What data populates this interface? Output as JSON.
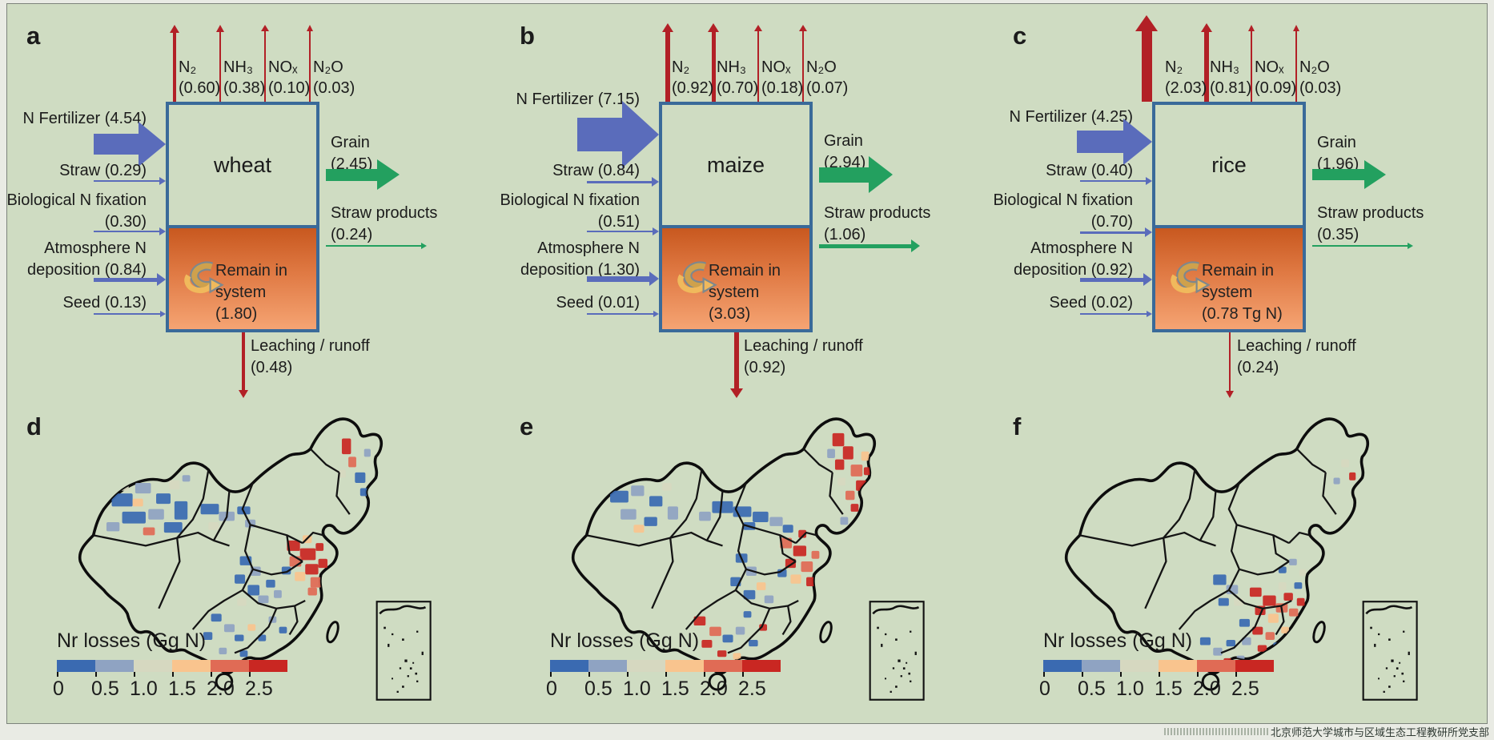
{
  "figure": {
    "watermark": "北京师范大学城市与区域生态工程教研所党支部"
  },
  "colors": {
    "background": "#cfdcc2",
    "outer_background": "#e9ebe4",
    "box_border": "#3a6a99",
    "red_arrow": "#b22026",
    "blue_arrow": "#5a6cbb",
    "green_arrow": "#23a05f",
    "orange_top": "#c8581f",
    "orange_bottom": "#f5a473",
    "legend": [
      "#3a6ab1",
      "#8fa3c2",
      "#d6d8c0",
      "#f9c48e",
      "#e06b55",
      "#c92722"
    ]
  },
  "flow_panels": [
    {
      "label": "a",
      "crop": "wheat",
      "gases": [
        {
          "name": "N₂",
          "value": "(0.60)"
        },
        {
          "name": "NH₃",
          "value": "(0.38)"
        },
        {
          "name": "NOₓ",
          "value": "(0.10)"
        },
        {
          "name": "N₂O",
          "value": "(0.03)"
        }
      ],
      "inputs": {
        "fertilizer": "N Fertilizer (4.54)",
        "straw": "Straw (0.29)",
        "bnf_line1": "Biological N fixation",
        "bnf_line2": "(0.30)",
        "dep_line1": "Atmosphere N",
        "dep_line2": "deposition (0.84)",
        "seed": "Seed (0.13)"
      },
      "outputs": {
        "grain_label": "Grain",
        "grain_value": "(2.45)",
        "straw_products_label": "Straw products",
        "straw_products_value": "(0.24)",
        "leaching_label": "Leaching / runoff",
        "leaching_value": "(0.48)"
      },
      "remain_label": "Remain in system",
      "remain_value": "(1.80)"
    },
    {
      "label": "b",
      "crop": "maize",
      "gases": [
        {
          "name": "N₂",
          "value": "(0.92)"
        },
        {
          "name": "NH₃",
          "value": "(0.70)"
        },
        {
          "name": "NOₓ",
          "value": "(0.18)"
        },
        {
          "name": "N₂O",
          "value": "(0.07)"
        }
      ],
      "inputs": {
        "fertilizer": "N Fertilizer (7.15)",
        "straw": "Straw (0.84)",
        "bnf_line1": "Biological N fixation",
        "bnf_line2": "(0.51)",
        "dep_line1": "Atmosphere N",
        "dep_line2": "deposition (1.30)",
        "seed": "Seed (0.01)"
      },
      "outputs": {
        "grain_label": "Grain",
        "grain_value": "(2.94)",
        "straw_products_label": "Straw products",
        "straw_products_value": "(1.06)",
        "leaching_label": "Leaching / runoff",
        "leaching_value": "(0.92)"
      },
      "remain_label": "Remain in system",
      "remain_value": "(3.03)"
    },
    {
      "label": "c",
      "crop": "rice",
      "gases": [
        {
          "name": "N₂",
          "value": "(2.03)"
        },
        {
          "name": "NH₃",
          "value": "(0.81)"
        },
        {
          "name": "NOₓ",
          "value": "(0.09)"
        },
        {
          "name": "N₂O",
          "value": "(0.03)"
        }
      ],
      "inputs": {
        "fertilizer": "N Fertilizer (4.25)",
        "straw": "Straw (0.40)",
        "bnf_line1": "Biological N fixation",
        "bnf_line2": "(0.70)",
        "dep_line1": "Atmosphere N",
        "dep_line2": "deposition (0.92)",
        "seed": "Seed (0.02)"
      },
      "outputs": {
        "grain_label": "Grain",
        "grain_value": "(1.96)",
        "straw_products_label": "Straw products",
        "straw_products_value": "(0.35)",
        "leaching_label": "Leaching / runoff",
        "leaching_value": "(0.24)"
      },
      "remain_label": "Remain in system",
      "remain_value": "(0.78 Tg N)"
    }
  ],
  "map_panels": [
    {
      "label": "d",
      "legend_title": "Nr losses (Gg N)",
      "ticks": [
        "0",
        "0.5",
        "1.0",
        "1.5",
        "2.0",
        "2.5"
      ],
      "patches": [
        [
          50,
          68,
          16,
          10,
          0
        ],
        [
          68,
          60,
          12,
          8,
          1
        ],
        [
          84,
          68,
          11,
          8,
          0
        ],
        [
          58,
          82,
          18,
          9,
          0
        ],
        [
          78,
          80,
          12,
          8,
          1
        ],
        [
          94,
          58,
          8,
          7,
          2
        ],
        [
          98,
          74,
          10,
          14,
          0
        ],
        [
          46,
          90,
          10,
          7,
          1
        ],
        [
          90,
          90,
          14,
          8,
          0
        ],
        [
          66,
          72,
          8,
          6,
          3
        ],
        [
          56,
          60,
          7,
          6,
          2
        ],
        [
          104,
          54,
          6,
          5,
          1
        ],
        [
          74,
          94,
          9,
          6,
          4
        ],
        [
          118,
          76,
          14,
          8,
          0
        ],
        [
          132,
          82,
          12,
          7,
          1
        ],
        [
          146,
          78,
          10,
          6,
          0
        ],
        [
          124,
          90,
          8,
          6,
          2
        ],
        [
          152,
          88,
          8,
          6,
          1
        ],
        [
          226,
          26,
          7,
          12,
          5
        ],
        [
          231,
          40,
          6,
          8,
          4
        ],
        [
          236,
          52,
          8,
          8,
          0
        ],
        [
          243,
          34,
          5,
          6,
          1
        ],
        [
          224,
          50,
          5,
          6,
          2
        ],
        [
          240,
          64,
          6,
          6,
          0
        ],
        [
          184,
          104,
          10,
          8,
          5
        ],
        [
          194,
          110,
          12,
          9,
          5
        ],
        [
          186,
          116,
          9,
          8,
          4
        ],
        [
          198,
          122,
          10,
          8,
          5
        ],
        [
          190,
          128,
          8,
          7,
          3
        ],
        [
          202,
          132,
          8,
          8,
          4
        ],
        [
          208,
          118,
          7,
          7,
          5
        ],
        [
          180,
          124,
          7,
          6,
          0
        ],
        [
          196,
          100,
          7,
          6,
          3
        ],
        [
          206,
          106,
          6,
          6,
          5
        ],
        [
          200,
          140,
          7,
          6,
          4
        ],
        [
          148,
          116,
          9,
          7,
          0
        ],
        [
          156,
          124,
          8,
          7,
          1
        ],
        [
          144,
          130,
          8,
          7,
          0
        ],
        [
          154,
          138,
          9,
          8,
          0
        ],
        [
          162,
          146,
          8,
          6,
          1
        ],
        [
          146,
          148,
          7,
          6,
          2
        ],
        [
          168,
          134,
          7,
          6,
          0
        ],
        [
          174,
          142,
          6,
          6,
          1
        ],
        [
          126,
          160,
          8,
          6,
          0
        ],
        [
          136,
          168,
          8,
          6,
          1
        ],
        [
          120,
          174,
          7,
          6,
          0
        ],
        [
          144,
          176,
          7,
          5,
          0
        ],
        [
          154,
          168,
          6,
          5,
          3
        ],
        [
          132,
          186,
          6,
          5,
          1
        ],
        [
          148,
          188,
          6,
          5,
          0
        ],
        [
          162,
          176,
          6,
          5,
          0
        ],
        [
          170,
          162,
          6,
          5,
          1
        ],
        [
          178,
          170,
          6,
          5,
          0
        ]
      ]
    },
    {
      "label": "e",
      "legend_title": "Nr losses (Gg N)",
      "ticks": [
        "0",
        "0.5",
        "1.0",
        "1.5",
        "2.0",
        "2.5"
      ],
      "patches": [
        [
          224,
          22,
          9,
          10,
          5
        ],
        [
          232,
          32,
          8,
          10,
          5
        ],
        [
          238,
          46,
          9,
          9,
          4
        ],
        [
          226,
          42,
          7,
          8,
          5
        ],
        [
          242,
          58,
          8,
          8,
          5
        ],
        [
          234,
          66,
          7,
          7,
          4
        ],
        [
          246,
          36,
          6,
          7,
          3
        ],
        [
          220,
          34,
          6,
          7,
          1
        ],
        [
          248,
          48,
          5,
          6,
          5
        ],
        [
          228,
          56,
          6,
          6,
          2
        ],
        [
          238,
          76,
          6,
          6,
          5
        ],
        [
          230,
          86,
          6,
          6,
          1
        ],
        [
          132,
          74,
          16,
          9,
          0
        ],
        [
          148,
          78,
          14,
          8,
          0
        ],
        [
          163,
          82,
          12,
          8,
          0
        ],
        [
          176,
          86,
          10,
          7,
          1
        ],
        [
          122,
          82,
          9,
          7,
          1
        ],
        [
          156,
          90,
          9,
          6,
          0
        ],
        [
          186,
          92,
          8,
          6,
          0
        ],
        [
          54,
          66,
          14,
          9,
          0
        ],
        [
          70,
          62,
          10,
          8,
          1
        ],
        [
          84,
          70,
          10,
          8,
          0
        ],
        [
          62,
          80,
          12,
          8,
          1
        ],
        [
          80,
          86,
          10,
          7,
          0
        ],
        [
          94,
          60,
          7,
          6,
          2
        ],
        [
          98,
          78,
          8,
          10,
          1
        ],
        [
          72,
          92,
          8,
          6,
          3
        ],
        [
          184,
          102,
          9,
          8,
          4
        ],
        [
          194,
          108,
          10,
          8,
          5
        ],
        [
          188,
          118,
          8,
          7,
          5
        ],
        [
          200,
          120,
          9,
          8,
          4
        ],
        [
          192,
          130,
          8,
          7,
          3
        ],
        [
          204,
          132,
          7,
          7,
          5
        ],
        [
          182,
          126,
          7,
          6,
          0
        ],
        [
          208,
          112,
          6,
          6,
          4
        ],
        [
          198,
          96,
          6,
          6,
          5
        ],
        [
          150,
          114,
          9,
          7,
          0
        ],
        [
          158,
          124,
          8,
          7,
          1
        ],
        [
          146,
          132,
          8,
          7,
          0
        ],
        [
          156,
          142,
          9,
          7,
          0
        ],
        [
          166,
          136,
          7,
          6,
          3
        ],
        [
          172,
          146,
          7,
          6,
          1
        ],
        [
          118,
          162,
          9,
          7,
          5
        ],
        [
          130,
          170,
          9,
          7,
          4
        ],
        [
          124,
          180,
          8,
          6,
          5
        ],
        [
          140,
          176,
          8,
          6,
          0
        ],
        [
          150,
          170,
          7,
          6,
          1
        ],
        [
          136,
          188,
          7,
          5,
          5
        ],
        [
          148,
          190,
          6,
          5,
          3
        ],
        [
          160,
          180,
          7,
          5,
          0
        ],
        [
          168,
          168,
          6,
          5,
          5
        ],
        [
          156,
          158,
          6,
          5,
          0
        ]
      ]
    },
    {
      "label": "f",
      "legend_title": "Nr losses (Gg N)",
      "ticks": [
        "0",
        "0.5",
        "1.0",
        "1.5",
        "2.0",
        "2.5"
      ],
      "patches": [
        [
          236,
          42,
          6,
          6,
          2
        ],
        [
          242,
          52,
          5,
          6,
          5
        ],
        [
          230,
          56,
          5,
          5,
          1
        ],
        [
          138,
          130,
          10,
          8,
          0
        ],
        [
          148,
          138,
          9,
          7,
          1
        ],
        [
          142,
          148,
          8,
          6,
          0
        ],
        [
          154,
          148,
          7,
          6,
          2
        ],
        [
          166,
          140,
          9,
          7,
          5
        ],
        [
          176,
          146,
          10,
          8,
          5
        ],
        [
          186,
          152,
          9,
          7,
          4
        ],
        [
          170,
          154,
          8,
          7,
          5
        ],
        [
          180,
          160,
          8,
          7,
          3
        ],
        [
          192,
          144,
          7,
          6,
          5
        ],
        [
          196,
          156,
          7,
          6,
          4
        ],
        [
          188,
          136,
          6,
          6,
          2
        ],
        [
          202,
          148,
          6,
          6,
          5
        ],
        [
          200,
          136,
          6,
          5,
          0
        ],
        [
          158,
          164,
          8,
          6,
          0
        ],
        [
          168,
          170,
          8,
          6,
          5
        ],
        [
          178,
          174,
          7,
          6,
          4
        ],
        [
          160,
          178,
          7,
          6,
          1
        ],
        [
          172,
          184,
          7,
          5,
          5
        ],
        [
          184,
          182,
          6,
          5,
          0
        ],
        [
          190,
          170,
          6,
          5,
          3
        ],
        [
          196,
          176,
          5,
          5,
          5
        ],
        [
          128,
          178,
          8,
          6,
          0
        ],
        [
          138,
          186,
          7,
          6,
          1
        ],
        [
          148,
          180,
          7,
          5,
          0
        ],
        [
          146,
          194,
          6,
          5,
          5
        ],
        [
          134,
          196,
          6,
          5,
          0
        ],
        [
          156,
          192,
          6,
          5,
          1
        ],
        [
          152,
          204,
          5,
          4,
          0
        ],
        [
          162,
          200,
          5,
          4,
          4
        ],
        [
          196,
          118,
          6,
          5,
          1
        ],
        [
          188,
          124,
          6,
          5,
          0
        ],
        [
          204,
          126,
          5,
          5,
          2
        ]
      ]
    }
  ],
  "chart_data": [
    {
      "type": "flow",
      "crop": "wheat",
      "unit": "Tg N",
      "inputs": {
        "n_fertilizer": 4.54,
        "straw": 0.29,
        "biological_n_fixation": 0.3,
        "atmosphere_n_deposition": 0.84,
        "seed": 0.13
      },
      "outputs": {
        "n2": 0.6,
        "nh3": 0.38,
        "nox": 0.1,
        "n2o": 0.03,
        "grain": 2.45,
        "straw_products": 0.24,
        "leaching_runoff": 0.48,
        "remain_in_system": 1.8
      }
    },
    {
      "type": "flow",
      "crop": "maize",
      "unit": "Tg N",
      "inputs": {
        "n_fertilizer": 7.15,
        "straw": 0.84,
        "biological_n_fixation": 0.51,
        "atmosphere_n_deposition": 1.3,
        "seed": 0.01
      },
      "outputs": {
        "n2": 0.92,
        "nh3": 0.7,
        "nox": 0.18,
        "n2o": 0.07,
        "grain": 2.94,
        "straw_products": 1.06,
        "leaching_runoff": 0.92,
        "remain_in_system": 3.03
      }
    },
    {
      "type": "flow",
      "crop": "rice",
      "unit": "Tg N",
      "inputs": {
        "n_fertilizer": 4.25,
        "straw": 0.4,
        "biological_n_fixation": 0.7,
        "atmosphere_n_deposition": 0.92,
        "seed": 0.02
      },
      "outputs": {
        "n2": 2.03,
        "nh3": 0.81,
        "nox": 0.09,
        "n2o": 0.03,
        "grain": 1.96,
        "straw_products": 0.35,
        "leaching_runoff": 0.24,
        "remain_in_system": 0.78
      }
    },
    {
      "type": "heatmap",
      "title": "Nr losses (Gg N)",
      "maps": [
        "wheat county-level Nr losses",
        "maize county-level Nr losses",
        "rice county-level Nr losses"
      ],
      "legend_ticks": [
        0,
        0.5,
        1.0,
        1.5,
        2.0,
        2.5
      ],
      "legend_colors": [
        "#3a6ab1",
        "#8fa3c2",
        "#d6d8c0",
        "#f9c48e",
        "#e06b55",
        "#c92722"
      ]
    }
  ]
}
